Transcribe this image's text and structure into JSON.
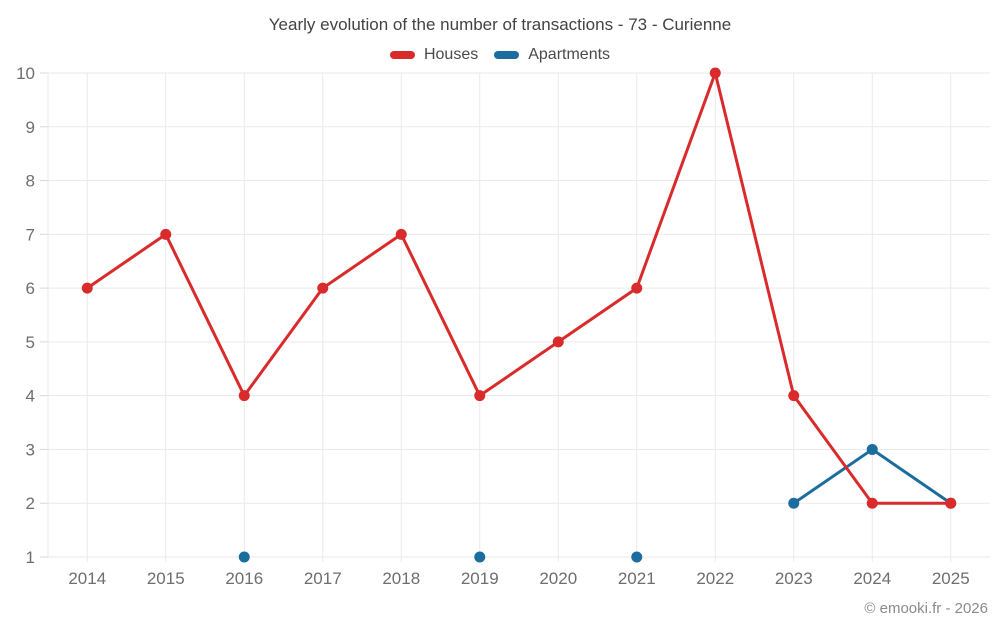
{
  "attribution": "© emooki.fr - 2026",
  "chart_data": {
    "type": "line",
    "title": "Yearly evolution of the number of transactions - 73 - Curienne",
    "categories": [
      "2014",
      "2015",
      "2016",
      "2017",
      "2018",
      "2019",
      "2020",
      "2021",
      "2022",
      "2023",
      "2024",
      "2025"
    ],
    "series": [
      {
        "name": "Houses",
        "color": "#d92b2b",
        "values": [
          6,
          7,
          4,
          6,
          7,
          4,
          5,
          6,
          10,
          4,
          2,
          2
        ]
      },
      {
        "name": "Apartments",
        "color": "#1b6d9e",
        "values": [
          null,
          null,
          1,
          null,
          null,
          1,
          null,
          1,
          null,
          2,
          3,
          2
        ]
      }
    ],
    "ylim": [
      1,
      10
    ],
    "y_ticks": [
      1,
      2,
      3,
      4,
      5,
      6,
      7,
      8,
      9,
      10
    ],
    "xlabel": "",
    "ylabel": "",
    "grid": true,
    "legend_position": "top",
    "colors": {
      "gridline": "#eaeaea",
      "axis_tick": "#d8d8d8",
      "tick_label": "#6e6e6e"
    }
  }
}
